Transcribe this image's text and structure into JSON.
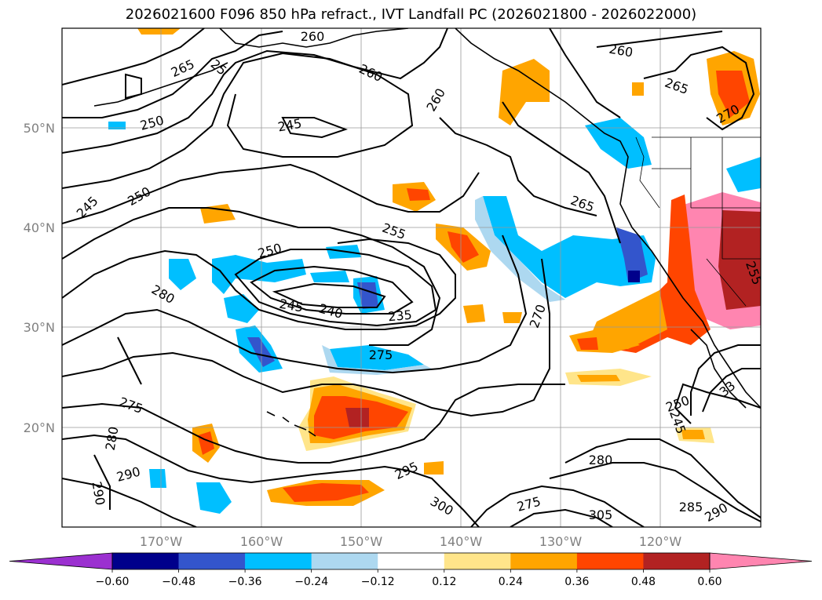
{
  "title": "2026021600 F096 850 hPa refract., IVT Landfall PC (2026021800 - 2026022000)",
  "latitude_labels": [
    "50°N",
    "40°N",
    "30°N",
    "20°N"
  ],
  "longitude_labels": [
    "170°W",
    "160°W",
    "150°W",
    "140°W",
    "130°W",
    "120°W"
  ],
  "colorbar": {
    "ticks": [
      "−0.60",
      "−0.48",
      "−0.36",
      "−0.24",
      "−0.12",
      "0.12",
      "0.24",
      "0.36",
      "0.48",
      "0.60"
    ],
    "colors": [
      "#9b30d0",
      "#00008b",
      "#3355cc",
      "#00bfff",
      "#add8f0",
      "#ffffff",
      "#ffe58a",
      "#ffa500",
      "#ff4500",
      "#b22222",
      "#ff85b0"
    ]
  },
  "contour_labels": [
    "260",
    "25",
    "265",
    "260",
    "250",
    "245",
    "260",
    "260",
    "265",
    "270",
    "245",
    "250",
    "255",
    "265",
    "250",
    "280",
    "245",
    "240",
    "235",
    "270",
    "275",
    "275",
    "280",
    "290",
    "290",
    "295",
    "300",
    "275",
    "280",
    "305",
    "285",
    "290",
    "250",
    "245",
    "255",
    "33"
  ]
}
